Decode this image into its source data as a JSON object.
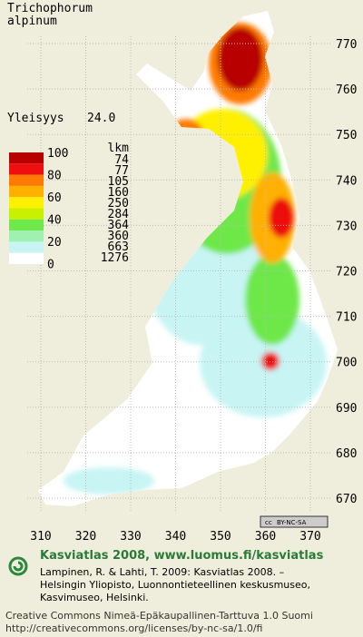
{
  "header": {
    "species": "Trichophorum",
    "species_line2": "alpinum",
    "frequency_label": "Yleisyys",
    "frequency_value": "24.0"
  },
  "legend": {
    "levels": [
      "100",
      "80",
      "60",
      "40",
      "20",
      "0"
    ],
    "count_title": "lkm",
    "counts": [
      "74",
      "77",
      "105",
      "160",
      "250",
      "284",
      "364",
      "360",
      "663",
      "1276"
    ],
    "colors": [
      "#b80000",
      "#ee1010",
      "#ff7a00",
      "#ffb000",
      "#fff000",
      "#c8f000",
      "#6ee84a",
      "#a0f0b0",
      "#c8f4f4",
      "#ffffff"
    ]
  },
  "axes": {
    "y_labels": [
      "770",
      "760",
      "750",
      "740",
      "730",
      "720",
      "710",
      "700",
      "690",
      "680",
      "670"
    ],
    "x_labels": [
      "310",
      "320",
      "330",
      "340",
      "350",
      "360",
      "370"
    ]
  },
  "badge": "BY-NC-SA",
  "footer": {
    "site": "Kasviatlas 2008, www.luomus.fi/kasviatlas",
    "citation": [
      "Lampinen, R. & Lahti, T. 2009: Kasviatlas 2008. –",
      "Helsingin Yliopisto, Luonnontieteellinen keskusmuseo,",
      "Kasvimuseo, Helsinki."
    ],
    "license": "Creative Commons Nimeä-Epäkaupallinen-Tarttuva 1.0 Suomi",
    "url": "http://creativecommons.org/licenses/by-nc-sa/1.0/fi"
  }
}
